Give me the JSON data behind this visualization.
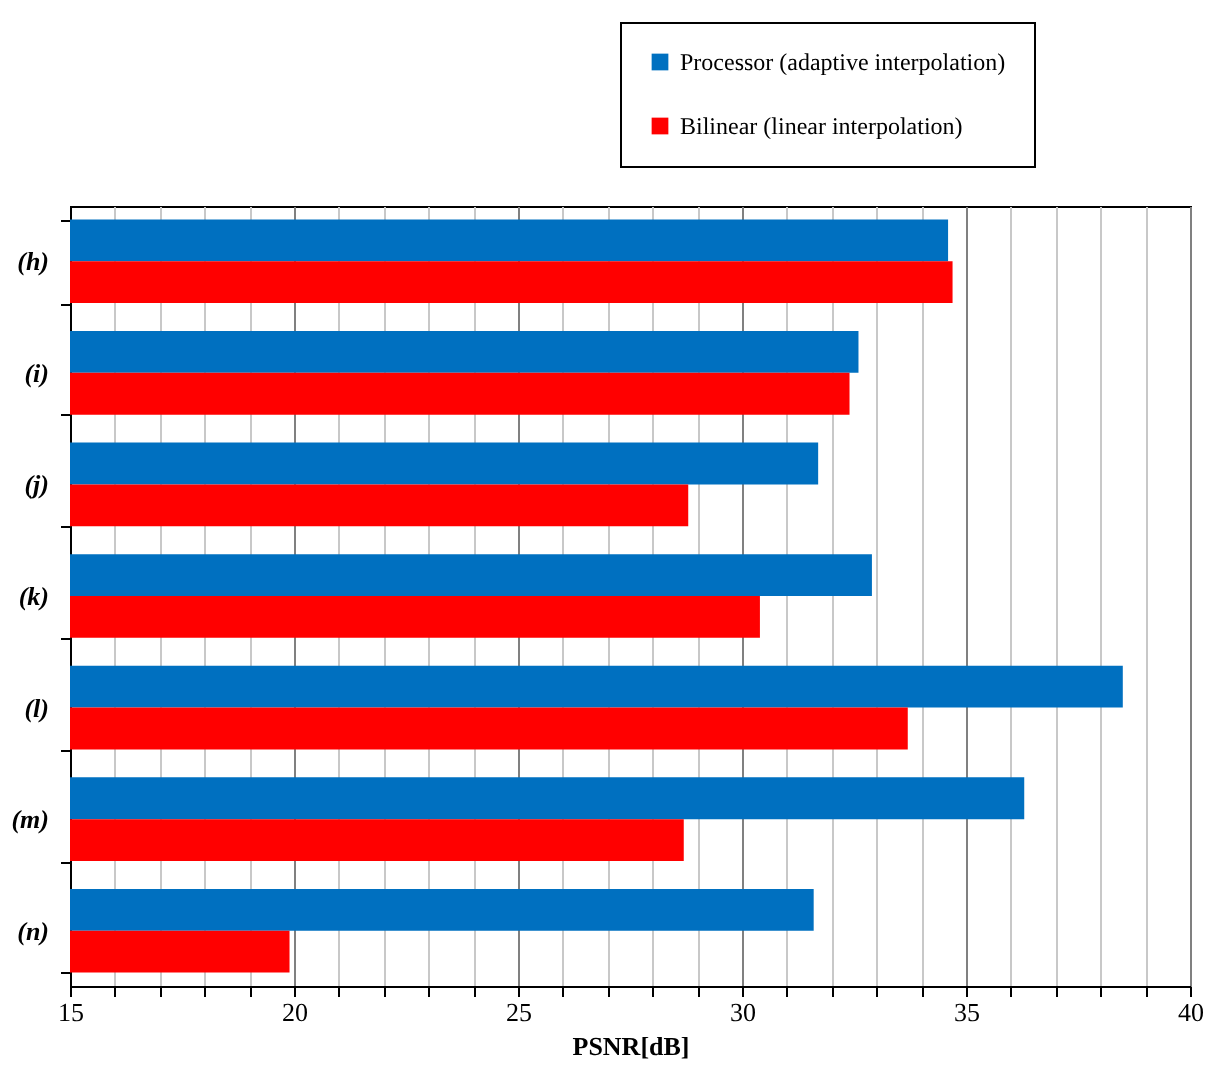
{
  "chart_data": {
    "type": "bar",
    "orientation": "horizontal",
    "xlabel": "PSNR[dB]",
    "categories": [
      "(h)",
      "(i)",
      "(j)",
      "(k)",
      "(l)",
      "(m)",
      "(n)"
    ],
    "series": [
      {
        "name": "Processor (adaptive interpolation)",
        "color": "#0070c0",
        "values": [
          34.6,
          32.6,
          31.7,
          32.9,
          38.5,
          36.3,
          31.6
        ]
      },
      {
        "name": "Bilinear (linear interpolation)",
        "color": "#ff0000",
        "values": [
          34.7,
          32.4,
          28.8,
          30.4,
          33.7,
          28.7,
          19.9
        ]
      }
    ],
    "xlim": [
      15,
      40
    ],
    "xticks": [
      15,
      {
        "value": 16,
        "label": null
      },
      {
        "value": 17,
        "label": null
      },
      {
        "value": 18,
        "label": null
      },
      {
        "value": 19,
        "label": null
      },
      20,
      {
        "value": 21,
        "label": null
      },
      {
        "value": 22,
        "label": null
      },
      {
        "value": 23,
        "label": null
      },
      {
        "value": 24,
        "label": null
      },
      25,
      {
        "value": 26,
        "label": null
      },
      {
        "value": 27,
        "label": null
      },
      {
        "value": 28,
        "label": null
      },
      {
        "value": 29,
        "label": null
      },
      30,
      {
        "value": 31,
        "label": null
      },
      {
        "value": 32,
        "label": null
      },
      {
        "value": 33,
        "label": null
      },
      {
        "value": 34,
        "label": null
      },
      35,
      {
        "value": 36,
        "label": null
      },
      {
        "value": 37,
        "label": null
      },
      {
        "value": 38,
        "label": null
      },
      {
        "value": 39,
        "label": null
      },
      40
    ],
    "grid": "x",
    "legend": "top right"
  }
}
